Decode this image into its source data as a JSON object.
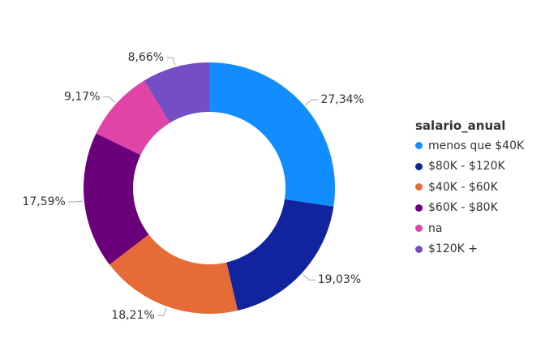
{
  "chart_data": {
    "type": "pie",
    "donut": true,
    "legend_title": "salario_anual",
    "legend_position": "right",
    "slices": [
      {
        "name": "menos que $40K",
        "value": 27.34,
        "label": "27,34%",
        "color": "#118DFF"
      },
      {
        "name": "$80K - $120K",
        "value": 19.03,
        "label": "19,03%",
        "color": "#12239E"
      },
      {
        "name": "$40K - $60K",
        "value": 18.21,
        "label": "18,21%",
        "color": "#E66C37"
      },
      {
        "name": "$60K - $80K",
        "value": 17.59,
        "label": "17,59%",
        "color": "#6B007B"
      },
      {
        "name": "na",
        "value": 9.17,
        "label": "9,17%",
        "color": "#E044A7"
      },
      {
        "name": "$120K +",
        "value": 8.66,
        "label": "8,66%",
        "color": "#744EC2"
      }
    ]
  }
}
